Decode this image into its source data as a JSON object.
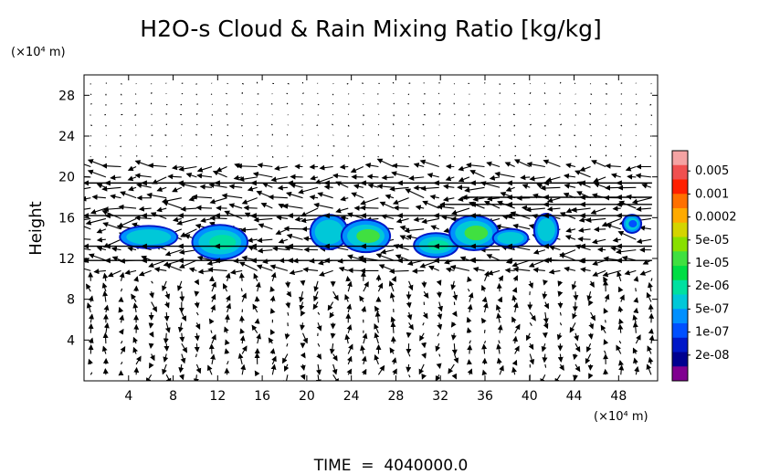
{
  "chart_data": {
    "type": "heatmap",
    "title": "H2O-s Cloud & Rain Mixing Ratio [kg/kg]",
    "ylabel": "Height",
    "y_unit_label": "(×10⁴ m)",
    "x_unit_label": "(×10⁴ m)",
    "footer": "TIME  =  4040000.0",
    "xlim": [
      0,
      51.5
    ],
    "ylim": [
      0,
      30
    ],
    "x_ticks": [
      4,
      8,
      12,
      16,
      20,
      24,
      28,
      32,
      36,
      40,
      44,
      48
    ],
    "y_ticks": [
      4,
      8,
      12,
      16,
      20,
      24,
      28
    ],
    "colorbar": {
      "labels": [
        "0.005",
        "0.001",
        "0.0002",
        "5e-05",
        "1e-05",
        "2e-06",
        "5e-07",
        "1e-07",
        "2e-08"
      ],
      "colors": [
        "#f4a3a3",
        "#f05050",
        "#ff2000",
        "#ff7000",
        "#ffaa00",
        "#d4d400",
        "#88e000",
        "#40e040",
        "#00dd44",
        "#00e0a0",
        "#00c8d8",
        "#0090ff",
        "#0050ff",
        "#0018c8",
        "#000090",
        "#800090"
      ]
    },
    "cloud_cells": [
      {
        "x": 5.8,
        "y": 14.1,
        "w": 5.0,
        "h": 2.0,
        "level": "5e-07"
      },
      {
        "x": 12.2,
        "y": 13.6,
        "w": 4.8,
        "h": 3.2,
        "level": "2e-06"
      },
      {
        "x": 22.0,
        "y": 14.6,
        "w": 3.2,
        "h": 3.2,
        "level": "5e-07"
      },
      {
        "x": 25.3,
        "y": 14.2,
        "w": 4.2,
        "h": 3.0,
        "level": "1e-05"
      },
      {
        "x": 31.6,
        "y": 13.3,
        "w": 3.8,
        "h": 2.2,
        "level": "2e-06"
      },
      {
        "x": 35.0,
        "y": 14.5,
        "w": 4.2,
        "h": 3.2,
        "level": "1e-05"
      },
      {
        "x": 38.3,
        "y": 14.0,
        "w": 3.0,
        "h": 1.6,
        "level": "5e-07"
      },
      {
        "x": 41.5,
        "y": 14.8,
        "w": 2.0,
        "h": 3.0,
        "level": "5e-07"
      },
      {
        "x": 49.2,
        "y": 15.4,
        "w": 1.5,
        "h": 1.6,
        "level": "1e-07"
      }
    ],
    "wind_jets": [
      {
        "y": 18.0,
        "x_start": 34,
        "x_end": 51,
        "strength": 1.0
      },
      {
        "y": 17.3,
        "x_start": 32,
        "x_end": 51,
        "strength": 0.8
      },
      {
        "y": 19.4,
        "x_start": 0,
        "x_end": 51,
        "strength": 0.6
      },
      {
        "y": 16.2,
        "x_start": 0,
        "x_end": 51,
        "strength": 0.7
      },
      {
        "y": 13.2,
        "x_start": 0,
        "x_end": 51,
        "strength": 0.7
      },
      {
        "y": 11.8,
        "x_start": 0,
        "x_end": 51,
        "strength": 0.6
      }
    ]
  }
}
